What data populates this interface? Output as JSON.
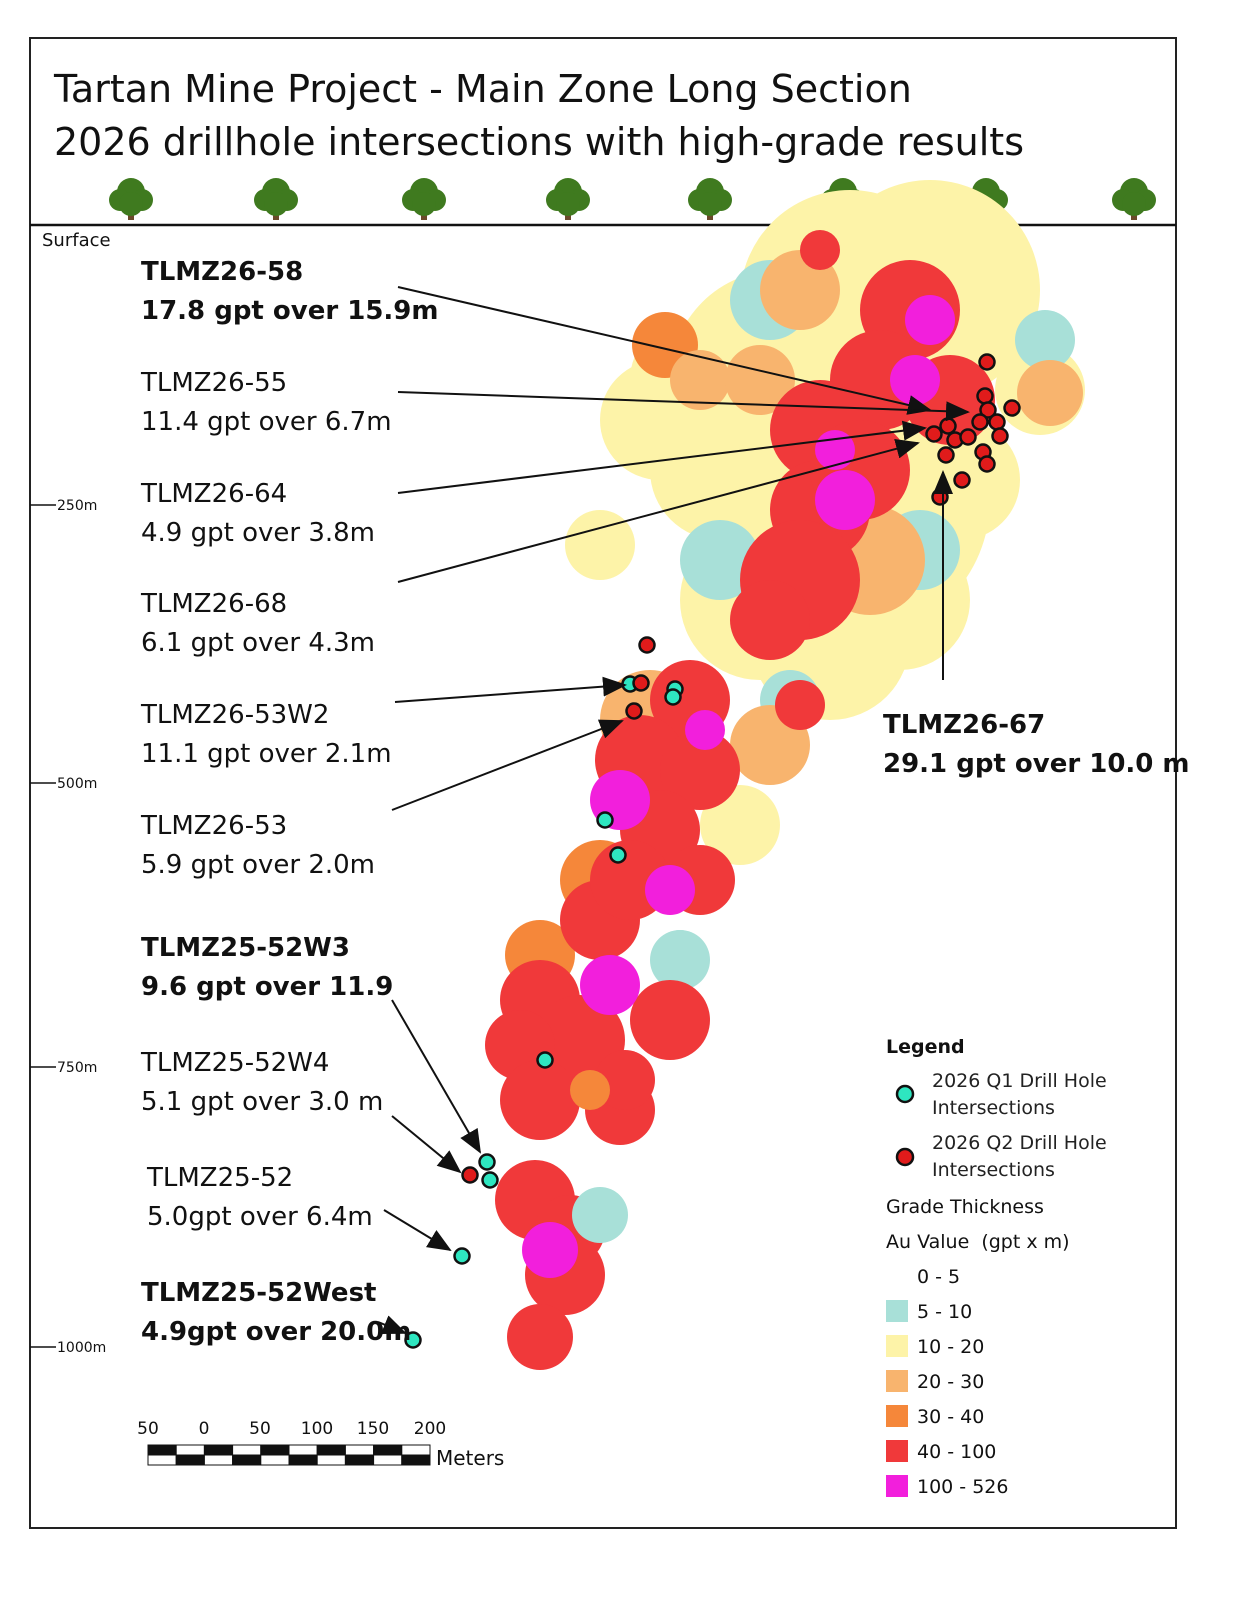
{
  "header": {
    "title_line1": "Tartan Mine Project - Main Zone Long Section",
    "title_line2": "2026 drillhole intersections with high-grade results"
  },
  "surface_label": "Surface",
  "depth_ticks": [
    "250m",
    "500m",
    "750m",
    "1000m"
  ],
  "annotations": [
    {
      "hole": "TLMZ26-58",
      "result": "17.8 gpt over 15.9m",
      "bold": true
    },
    {
      "hole": "TLMZ26-55",
      "result": "11.4 gpt over 6.7m",
      "bold": false
    },
    {
      "hole": "TLMZ26-64",
      "result": "4.9 gpt over 3.8m",
      "bold": false
    },
    {
      "hole": "TLMZ26-68",
      "result": "6.1 gpt over 4.3m",
      "bold": false
    },
    {
      "hole": "TLMZ26-53W2",
      "result": "11.1 gpt over 2.1m",
      "bold": false
    },
    {
      "hole": "TLMZ26-53",
      "result": "5.9 gpt over 2.0m",
      "bold": false
    },
    {
      "hole": "TLMZ25-52W3",
      "result": "9.6 gpt over 11.9",
      "bold": true
    },
    {
      "hole": "TLMZ25-52W4",
      "result": "5.1 gpt over 3.0 m",
      "bold": false
    },
    {
      "hole": "TLMZ25-52",
      "result": "5.0gpt over 6.4m",
      "bold": false
    },
    {
      "hole": "TLMZ25-52West",
      "result": "4.9gpt over 20.0m",
      "bold": true
    },
    {
      "hole": "TLMZ26-67",
      "result": "29.1 gpt over 10.0 m",
      "bold": true
    }
  ],
  "scale_bar": {
    "labels": [
      "50",
      "0",
      "50",
      "100",
      "150",
      "200"
    ],
    "unit": "Meters"
  },
  "legend": {
    "title": "Legend",
    "drill_holes": [
      {
        "label": "2026 Q1 Drill Hole Intersections",
        "color": "#2ee6c0"
      },
      {
        "label": "2026 Q2 Drill Hole Intersections",
        "color": "#e01b1b"
      }
    ],
    "grade_title": "Grade Thickness",
    "grade_subtitle": "Au Value  (gpt x m)",
    "grades": [
      {
        "label": "0 - 5",
        "color": "#ffffff"
      },
      {
        "label": "5 - 10",
        "color": "#a8e0d8"
      },
      {
        "label": "10 - 20",
        "color": "#fdf3a8"
      },
      {
        "label": "20 - 30",
        "color": "#f8b46e"
      },
      {
        "label": "30 - 40",
        "color": "#f5873a"
      },
      {
        "label": "40 - 100",
        "color": "#f0393a"
      },
      {
        "label": "100 - 526",
        "color": "#f21fdc"
      }
    ]
  }
}
